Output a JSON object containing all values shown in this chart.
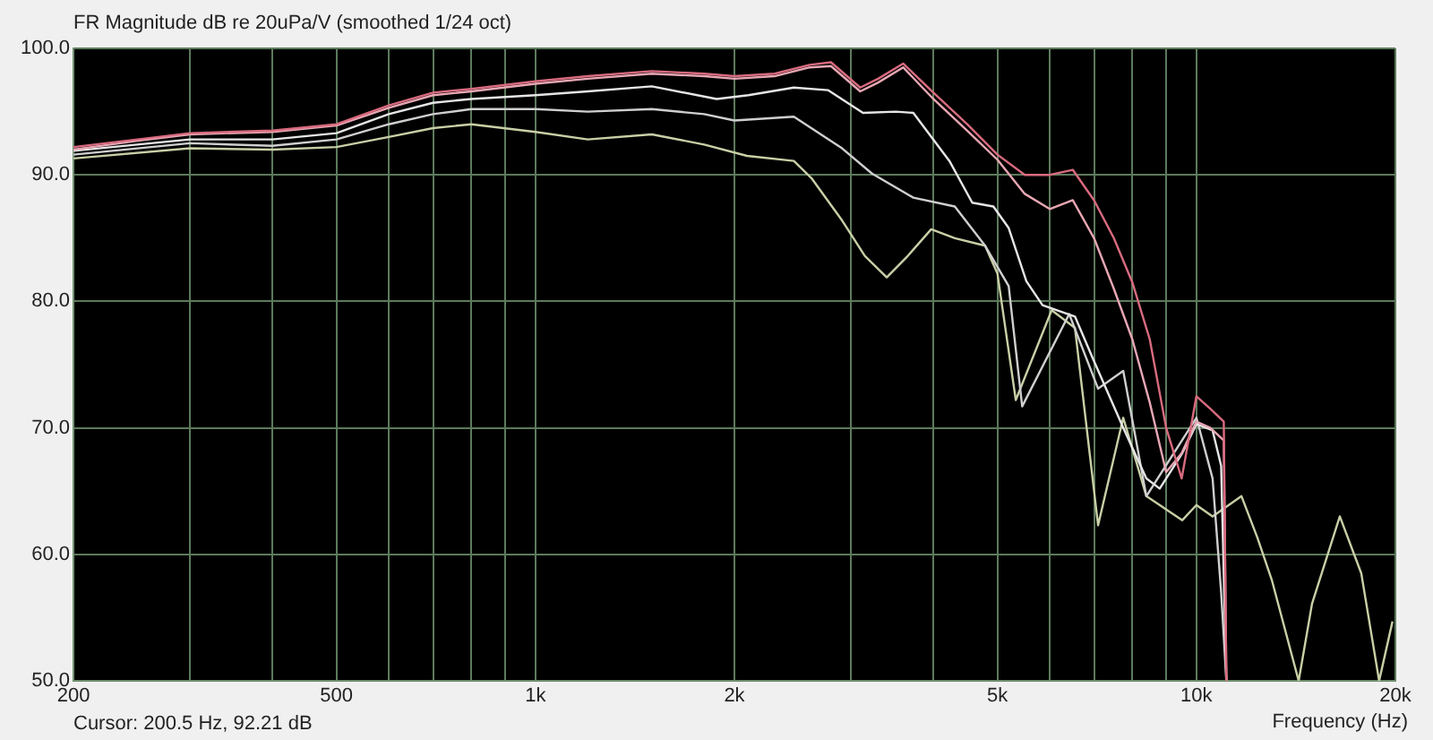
{
  "chart_data": {
    "type": "line",
    "title": "FR Magnitude dB re 20uPa/V (smoothed 1/24 oct)",
    "xlabel": "Frequency (Hz)",
    "annotations": [
      "Cursor: 200.5 Hz, 92.21 dB"
    ],
    "log": "x",
    "grid": true,
    "marker": "none",
    "line_style": "solid",
    "xlim": [
      200,
      20000
    ],
    "ylim": [
      50,
      100
    ],
    "xticks": [
      {
        "value": 200,
        "label": "200"
      },
      {
        "value": 300,
        "label": null
      },
      {
        "value": 400,
        "label": null
      },
      {
        "value": 500,
        "label": "500"
      },
      {
        "value": 600,
        "label": null
      },
      {
        "value": 700,
        "label": null
      },
      {
        "value": 800,
        "label": null
      },
      {
        "value": 900,
        "label": null
      },
      {
        "value": 1000,
        "label": "1k"
      },
      {
        "value": 2000,
        "label": "2k"
      },
      {
        "value": 3000,
        "label": null
      },
      {
        "value": 4000,
        "label": null
      },
      {
        "value": 5000,
        "label": "5k"
      },
      {
        "value": 6000,
        "label": null
      },
      {
        "value": 7000,
        "label": null
      },
      {
        "value": 8000,
        "label": null
      },
      {
        "value": 9000,
        "label": null
      },
      {
        "value": 10000,
        "label": "10k"
      },
      {
        "value": 20000,
        "label": "20k"
      }
    ],
    "yticks": [
      {
        "value": 50,
        "label": "50.0"
      },
      {
        "value": 60,
        "label": "60.0"
      },
      {
        "value": 70,
        "label": "70.0"
      },
      {
        "value": 80,
        "label": "80.0"
      },
      {
        "value": 90,
        "label": "90.0"
      },
      {
        "value": 100,
        "label": "100.0"
      }
    ],
    "series": [
      {
        "color": "#d96b7f",
        "x": [
          200,
          250,
          300,
          400,
          500,
          600,
          700,
          800,
          1000,
          1200,
          1500,
          1800,
          2000,
          2300,
          2600,
          2800,
          3100,
          3300,
          3600,
          4000,
          4500,
          5000,
          5500,
          6000,
          6500,
          7000,
          7500,
          8000,
          8500,
          9000,
          9500,
          10000,
          10500,
          11000,
          11100
        ],
        "values": [
          92.2,
          92.8,
          93.3,
          93.5,
          94.0,
          95.5,
          96.5,
          96.8,
          97.4,
          97.8,
          98.2,
          98.0,
          97.8,
          98.0,
          98.7,
          98.9,
          96.9,
          97.6,
          98.8,
          96.5,
          94.0,
          91.6,
          90.0,
          90.0,
          90.4,
          88.0,
          85.0,
          81.5,
          77.0,
          70.0,
          66.0,
          72.5,
          71.5,
          70.5,
          50.0
        ]
      },
      {
        "color": "#e8a7b4",
        "x": [
          200,
          250,
          300,
          400,
          500,
          600,
          700,
          800,
          1000,
          1200,
          1500,
          1800,
          2000,
          2300,
          2600,
          2800,
          3100,
          3300,
          3600,
          4000,
          4500,
          5000,
          5500,
          6000,
          6500,
          7000,
          7500,
          8000,
          8500,
          9000,
          9500,
          10000,
          10500,
          11000,
          11100
        ],
        "values": [
          92.0,
          92.7,
          93.2,
          93.4,
          93.9,
          95.3,
          96.3,
          96.6,
          97.2,
          97.6,
          98.0,
          97.8,
          97.6,
          97.8,
          98.5,
          98.6,
          96.6,
          97.3,
          98.5,
          96.0,
          93.5,
          91.2,
          88.5,
          87.3,
          88.0,
          85.0,
          81.0,
          77.0,
          72.0,
          66.5,
          68.0,
          70.5,
          70.0,
          69.0,
          50.0
        ]
      },
      {
        "color": "#e6e6e6",
        "x": [
          200,
          300,
          400,
          500,
          600,
          700,
          800,
          1000,
          1200,
          1500,
          1880,
          2100,
          2460,
          2770,
          3130,
          3510,
          3730,
          4230,
          4580,
          4930,
          5200,
          5530,
          5850,
          6550,
          6970,
          7750,
          8400,
          8800,
          9520,
          10000,
          10580,
          10900,
          11100
        ],
        "values": [
          91.9,
          92.8,
          92.8,
          93.3,
          94.8,
          95.7,
          96.0,
          96.3,
          96.6,
          97.0,
          96.0,
          96.3,
          96.9,
          96.7,
          94.9,
          95.0,
          94.9,
          91.1,
          87.8,
          87.5,
          85.8,
          81.6,
          79.7,
          78.8,
          75.5,
          70.0,
          66.0,
          65.2,
          68.0,
          70.3,
          69.8,
          67.0,
          50.0
        ]
      },
      {
        "color": "#cfcfcf",
        "x": [
          200,
          300,
          400,
          500,
          600,
          700,
          800,
          1000,
          1200,
          1500,
          1800,
          2000,
          2460,
          2910,
          3230,
          3730,
          4310,
          4790,
          5200,
          5450,
          6420,
          7100,
          7750,
          8400,
          10000,
          10580,
          10900,
          11100
        ],
        "values": [
          91.6,
          92.5,
          92.3,
          92.8,
          94.0,
          94.8,
          95.2,
          95.2,
          95.0,
          95.2,
          94.8,
          94.3,
          94.6,
          92.1,
          90.1,
          88.2,
          87.5,
          84.4,
          81.2,
          71.7,
          79.0,
          73.1,
          74.5,
          64.6,
          70.8,
          66.0,
          57.0,
          50.0
        ]
      },
      {
        "color": "#c9cfa6",
        "x": [
          200,
          300,
          400,
          500,
          600,
          700,
          800,
          1000,
          1200,
          1500,
          1800,
          2090,
          2460,
          2620,
          2910,
          3150,
          3400,
          3660,
          3970,
          4310,
          4790,
          5000,
          5330,
          6040,
          6550,
          7100,
          7750,
          8400,
          9520,
          10000,
          10580,
          11700,
          12370,
          13000,
          14280,
          14960,
          16480,
          17760,
          18900,
          19800
        ],
        "values": [
          91.3,
          92.1,
          92.0,
          92.2,
          93.0,
          93.7,
          94.0,
          93.4,
          92.8,
          93.2,
          92.4,
          91.5,
          91.1,
          89.7,
          86.4,
          83.6,
          81.9,
          83.6,
          85.7,
          85.0,
          84.4,
          82.2,
          72.2,
          79.3,
          77.9,
          62.3,
          70.8,
          64.6,
          62.7,
          63.9,
          63.0,
          64.6,
          61.3,
          58.0,
          50.0,
          56.1,
          63.0,
          58.5,
          50.0,
          54.7
        ]
      }
    ]
  }
}
